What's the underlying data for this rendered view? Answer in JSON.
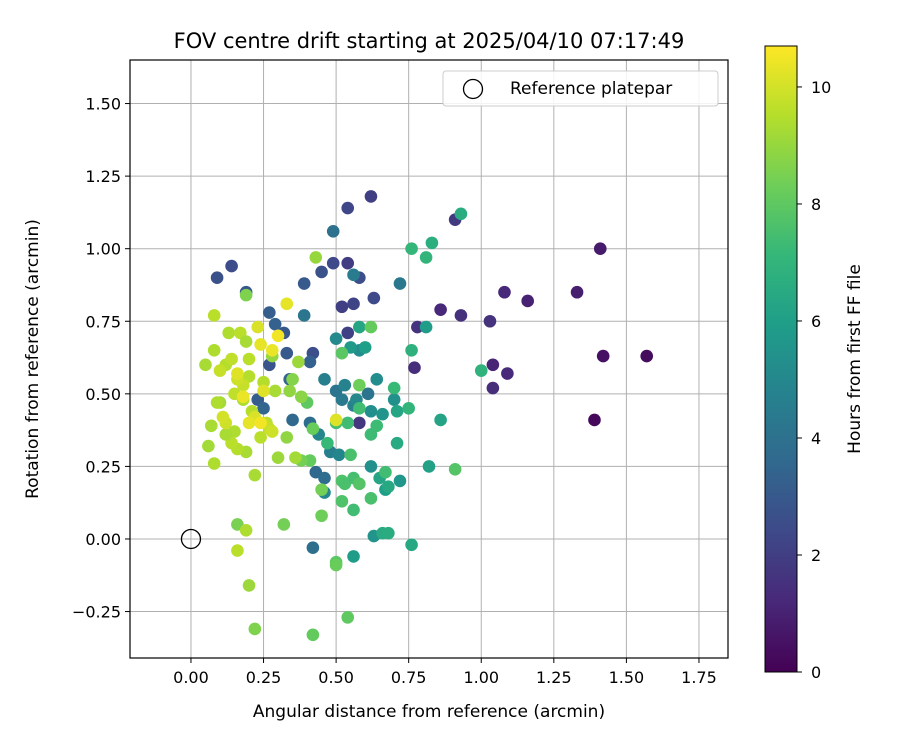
{
  "chart_data": {
    "type": "scatter",
    "title": "FOV centre drift starting at 2025/04/10 07:17:49",
    "xlabel": "Angular distance from reference (arcmin)",
    "ylabel": "Rotation from reference (arcmin)",
    "xlim": [
      -0.21,
      1.85
    ],
    "ylim": [
      -0.41,
      1.65
    ],
    "x_ticks": [
      0.0,
      0.25,
      0.5,
      0.75,
      1.0,
      1.25,
      1.5,
      1.75
    ],
    "x_tick_labels": [
      "0.00",
      "0.25",
      "0.50",
      "0.75",
      "1.00",
      "1.25",
      "1.50",
      "1.75"
    ],
    "y_ticks": [
      -0.25,
      0.0,
      0.25,
      0.5,
      0.75,
      1.0,
      1.25,
      1.5
    ],
    "y_tick_labels": [
      "−0.25",
      "0.00",
      "0.25",
      "0.50",
      "0.75",
      "1.00",
      "1.25",
      "1.50"
    ],
    "grid": true,
    "legend": {
      "position": "top-right",
      "entries": [
        {
          "label": "Reference platepar",
          "marker": "open-circle"
        }
      ]
    },
    "reference_point": {
      "x": 0.0,
      "y": 0.0
    },
    "colorbar": {
      "label": "Hours from first FF file",
      "colormap": "viridis",
      "range": [
        0,
        10.7
      ],
      "ticks": [
        0,
        2,
        4,
        6,
        8,
        10
      ],
      "tick_labels": [
        "0",
        "2",
        "4",
        "6",
        "8",
        "10"
      ],
      "stops": [
        "#440154",
        "#482878",
        "#3e4989",
        "#31688e",
        "#26828e",
        "#1f9e89",
        "#35b779",
        "#6ece58",
        "#b5de2b",
        "#fde725"
      ]
    },
    "series": [
      {
        "points": [
          [
            1.39,
            0.41,
            0.2
          ],
          [
            1.57,
            0.63,
            0.3
          ],
          [
            1.42,
            0.63,
            0.5
          ],
          [
            1.41,
            1.0,
            0.8
          ],
          [
            1.33,
            0.85,
            0.9
          ],
          [
            1.16,
            0.82,
            1.0
          ],
          [
            1.08,
            0.85,
            1.2
          ],
          [
            1.09,
            0.57,
            1.3
          ],
          [
            1.04,
            0.6,
            1.1
          ],
          [
            1.04,
            0.52,
            1.4
          ],
          [
            1.03,
            0.75,
            1.6
          ],
          [
            0.93,
            0.77,
            1.5
          ],
          [
            0.91,
            1.1,
            1.8
          ],
          [
            0.86,
            0.79,
            1.2
          ],
          [
            0.78,
            0.73,
            1.6
          ],
          [
            0.77,
            0.59,
            1.4
          ],
          [
            0.58,
            0.4,
            1.7
          ],
          [
            0.62,
            1.18,
            2.0
          ],
          [
            0.54,
            1.14,
            2.3
          ],
          [
            0.56,
            0.81,
            2.2
          ],
          [
            0.63,
            0.83,
            2.4
          ],
          [
            0.52,
            0.8,
            2.0
          ],
          [
            0.54,
            0.71,
            2.1
          ],
          [
            0.58,
            0.9,
            2.6
          ],
          [
            0.54,
            0.95,
            1.9
          ],
          [
            0.49,
            0.95,
            2.4
          ],
          [
            0.45,
            0.92,
            2.7
          ],
          [
            0.39,
            0.88,
            3.0
          ],
          [
            0.14,
            0.94,
            2.5
          ],
          [
            0.09,
            0.9,
            2.7
          ],
          [
            0.19,
            0.85,
            2.9
          ],
          [
            0.27,
            0.78,
            3.2
          ],
          [
            0.29,
            0.74,
            3.3
          ],
          [
            0.32,
            0.71,
            2.9
          ],
          [
            0.33,
            0.64,
            3.0
          ],
          [
            0.42,
            0.64,
            2.6
          ],
          [
            0.41,
            0.61,
            3.3
          ],
          [
            0.34,
            0.55,
            3.4
          ],
          [
            0.27,
            0.6,
            2.8
          ],
          [
            0.23,
            0.48,
            3.2
          ],
          [
            0.25,
            0.45,
            3.5
          ],
          [
            0.35,
            0.41,
            3.6
          ],
          [
            0.41,
            0.4,
            3.8
          ],
          [
            0.43,
            0.23,
            3.6
          ],
          [
            0.46,
            0.21,
            3.8
          ],
          [
            0.42,
            -0.03,
            3.9
          ],
          [
            0.49,
            1.06,
            4.0
          ],
          [
            0.39,
            0.77,
            4.2
          ],
          [
            0.72,
            0.88,
            4.3
          ],
          [
            0.56,
            0.91,
            4.5
          ],
          [
            0.61,
            0.5,
            4.1
          ],
          [
            0.52,
            0.48,
            4.4
          ],
          [
            0.56,
            0.46,
            4.7
          ],
          [
            0.46,
            0.55,
            4.6
          ],
          [
            0.5,
            0.51,
            4.2
          ],
          [
            0.53,
            0.53,
            4.8
          ],
          [
            0.44,
            0.36,
            4.9
          ],
          [
            0.48,
            0.3,
            4.6
          ],
          [
            0.46,
            0.16,
            5.0
          ],
          [
            0.51,
            0.29,
            4.9
          ],
          [
            0.5,
            0.69,
            5.1
          ],
          [
            0.58,
            0.65,
            5.2
          ],
          [
            0.57,
            0.48,
            5.0
          ],
          [
            0.62,
            0.44,
            5.3
          ],
          [
            0.64,
            0.55,
            5.2
          ],
          [
            0.62,
            0.25,
            5.4
          ],
          [
            0.66,
            0.43,
            5.5
          ],
          [
            0.7,
            0.48,
            5.4
          ],
          [
            0.72,
            0.2,
            5.6
          ],
          [
            0.63,
            0.01,
            5.5
          ],
          [
            0.56,
            -0.06,
            5.9
          ],
          [
            0.55,
            0.66,
            5.8
          ],
          [
            0.6,
            0.66,
            6.0
          ],
          [
            0.58,
            0.73,
            6.3
          ],
          [
            0.81,
            0.73,
            5.9
          ],
          [
            0.86,
            0.41,
            6.2
          ],
          [
            0.82,
            0.25,
            6.1
          ],
          [
            0.67,
            0.17,
            6.0
          ],
          [
            0.68,
            0.18,
            6.4
          ],
          [
            0.65,
            0.21,
            6.3
          ],
          [
            0.66,
            0.02,
            6.5
          ],
          [
            0.68,
            0.02,
            6.6
          ],
          [
            0.76,
            -0.02,
            6.4
          ],
          [
            0.71,
            0.33,
            6.5
          ],
          [
            0.71,
            0.44,
            6.3
          ],
          [
            0.76,
            0.65,
            6.8
          ],
          [
            1.0,
            0.58,
            6.9
          ],
          [
            0.93,
            1.12,
            6.6
          ],
          [
            0.76,
            1.0,
            7.1
          ],
          [
            0.81,
            0.97,
            7.0
          ],
          [
            0.83,
            1.02,
            6.7
          ],
          [
            0.75,
            0.45,
            7.0
          ],
          [
            0.7,
            0.52,
            7.2
          ],
          [
            0.62,
            0.36,
            7.3
          ],
          [
            0.58,
            0.45,
            7.4
          ],
          [
            0.64,
            0.39,
            7.3
          ],
          [
            0.54,
            0.4,
            7.4
          ],
          [
            0.5,
            0.4,
            7.5
          ],
          [
            0.47,
            0.33,
            7.2
          ],
          [
            0.55,
            0.29,
            7.6
          ],
          [
            0.52,
            0.2,
            7.7
          ],
          [
            0.53,
            0.19,
            7.6
          ],
          [
            0.56,
            0.21,
            7.5
          ],
          [
            0.52,
            0.13,
            7.7
          ],
          [
            0.56,
            0.1,
            7.4
          ],
          [
            0.58,
            0.19,
            7.8
          ],
          [
            0.62,
            0.14,
            7.6
          ],
          [
            0.67,
            0.23,
            7.4
          ],
          [
            0.91,
            0.24,
            7.8
          ],
          [
            0.5,
            -0.08,
            7.9
          ],
          [
            0.5,
            -0.09,
            8.2
          ],
          [
            0.54,
            -0.27,
            8.0
          ],
          [
            0.42,
            -0.33,
            8.1
          ],
          [
            0.62,
            0.73,
            8.1
          ],
          [
            0.52,
            0.64,
            7.9
          ],
          [
            0.58,
            0.53,
            8.3
          ],
          [
            0.4,
            0.47,
            8.0
          ],
          [
            0.42,
            0.38,
            8.2
          ],
          [
            0.45,
            0.17,
            8.4
          ],
          [
            0.41,
            0.27,
            8.1
          ],
          [
            0.45,
            0.08,
            8.3
          ],
          [
            0.38,
            0.27,
            8.4
          ],
          [
            0.19,
            0.84,
            8.6
          ],
          [
            0.16,
            0.05,
            8.5
          ],
          [
            0.32,
            0.05,
            8.4
          ],
          [
            0.22,
            -0.31,
            8.6
          ],
          [
            0.43,
            0.97,
            9.0
          ],
          [
            0.38,
            0.49,
            8.8
          ],
          [
            0.34,
            0.51,
            8.9
          ],
          [
            0.35,
            0.55,
            8.7
          ],
          [
            0.28,
            0.63,
            9.0
          ],
          [
            0.29,
            0.51,
            9.3
          ],
          [
            0.37,
            0.61,
            9.1
          ],
          [
            0.33,
            0.35,
            8.9
          ],
          [
            0.36,
            0.28,
            9.2
          ],
          [
            0.3,
            0.28,
            9.1
          ],
          [
            0.22,
            0.22,
            9.3
          ],
          [
            0.19,
            0.03,
            9.4
          ],
          [
            0.2,
            -0.16,
            9.1
          ],
          [
            0.16,
            -0.04,
            9.6
          ],
          [
            0.25,
            0.54,
            9.5
          ],
          [
            0.24,
            0.35,
            9.6
          ],
          [
            0.26,
            0.4,
            9.7
          ],
          [
            0.27,
            0.38,
            9.8
          ],
          [
            0.28,
            0.37,
            9.9
          ],
          [
            0.21,
            0.44,
            9.5
          ],
          [
            0.18,
            0.48,
            9.4
          ],
          [
            0.19,
            0.3,
            9.3
          ],
          [
            0.16,
            0.31,
            9.5
          ],
          [
            0.15,
            0.37,
            9.4
          ],
          [
            0.14,
            0.33,
            9.6
          ],
          [
            0.12,
            0.36,
            9.3
          ],
          [
            0.1,
            0.47,
            9.2
          ],
          [
            0.09,
            0.47,
            9.4
          ],
          [
            0.07,
            0.39,
            9.3
          ],
          [
            0.08,
            0.26,
            9.4
          ],
          [
            0.06,
            0.32,
            9.2
          ],
          [
            0.05,
            0.6,
            9.3
          ],
          [
            0.08,
            0.65,
            9.4
          ],
          [
            0.08,
            0.77,
            9.6
          ],
          [
            0.12,
            0.6,
            9.5
          ],
          [
            0.14,
            0.62,
            9.7
          ],
          [
            0.1,
            0.58,
            9.8
          ],
          [
            0.13,
            0.71,
            9.4
          ],
          [
            0.17,
            0.71,
            9.6
          ],
          [
            0.19,
            0.68,
            9.3
          ],
          [
            0.2,
            0.62,
            9.6
          ],
          [
            0.2,
            0.56,
            9.5
          ],
          [
            0.18,
            0.53,
            9.8
          ],
          [
            0.16,
            0.55,
            9.9
          ],
          [
            0.15,
            0.5,
            9.7
          ],
          [
            0.12,
            0.4,
            9.9
          ],
          [
            0.11,
            0.42,
            10.0
          ],
          [
            0.16,
            0.57,
            10.2
          ],
          [
            0.23,
            0.73,
            10.1
          ],
          [
            0.24,
            0.67,
            10.3
          ],
          [
            0.28,
            0.65,
            10.4
          ],
          [
            0.3,
            0.7,
            10.5
          ],
          [
            0.33,
            0.81,
            10.3
          ],
          [
            0.25,
            0.51,
            10.2
          ],
          [
            0.18,
            0.49,
            10.4
          ],
          [
            0.22,
            0.42,
            10.1
          ],
          [
            0.2,
            0.4,
            10.3
          ],
          [
            0.24,
            0.4,
            10.5
          ],
          [
            0.5,
            0.41,
            10.2
          ]
        ]
      }
    ]
  }
}
